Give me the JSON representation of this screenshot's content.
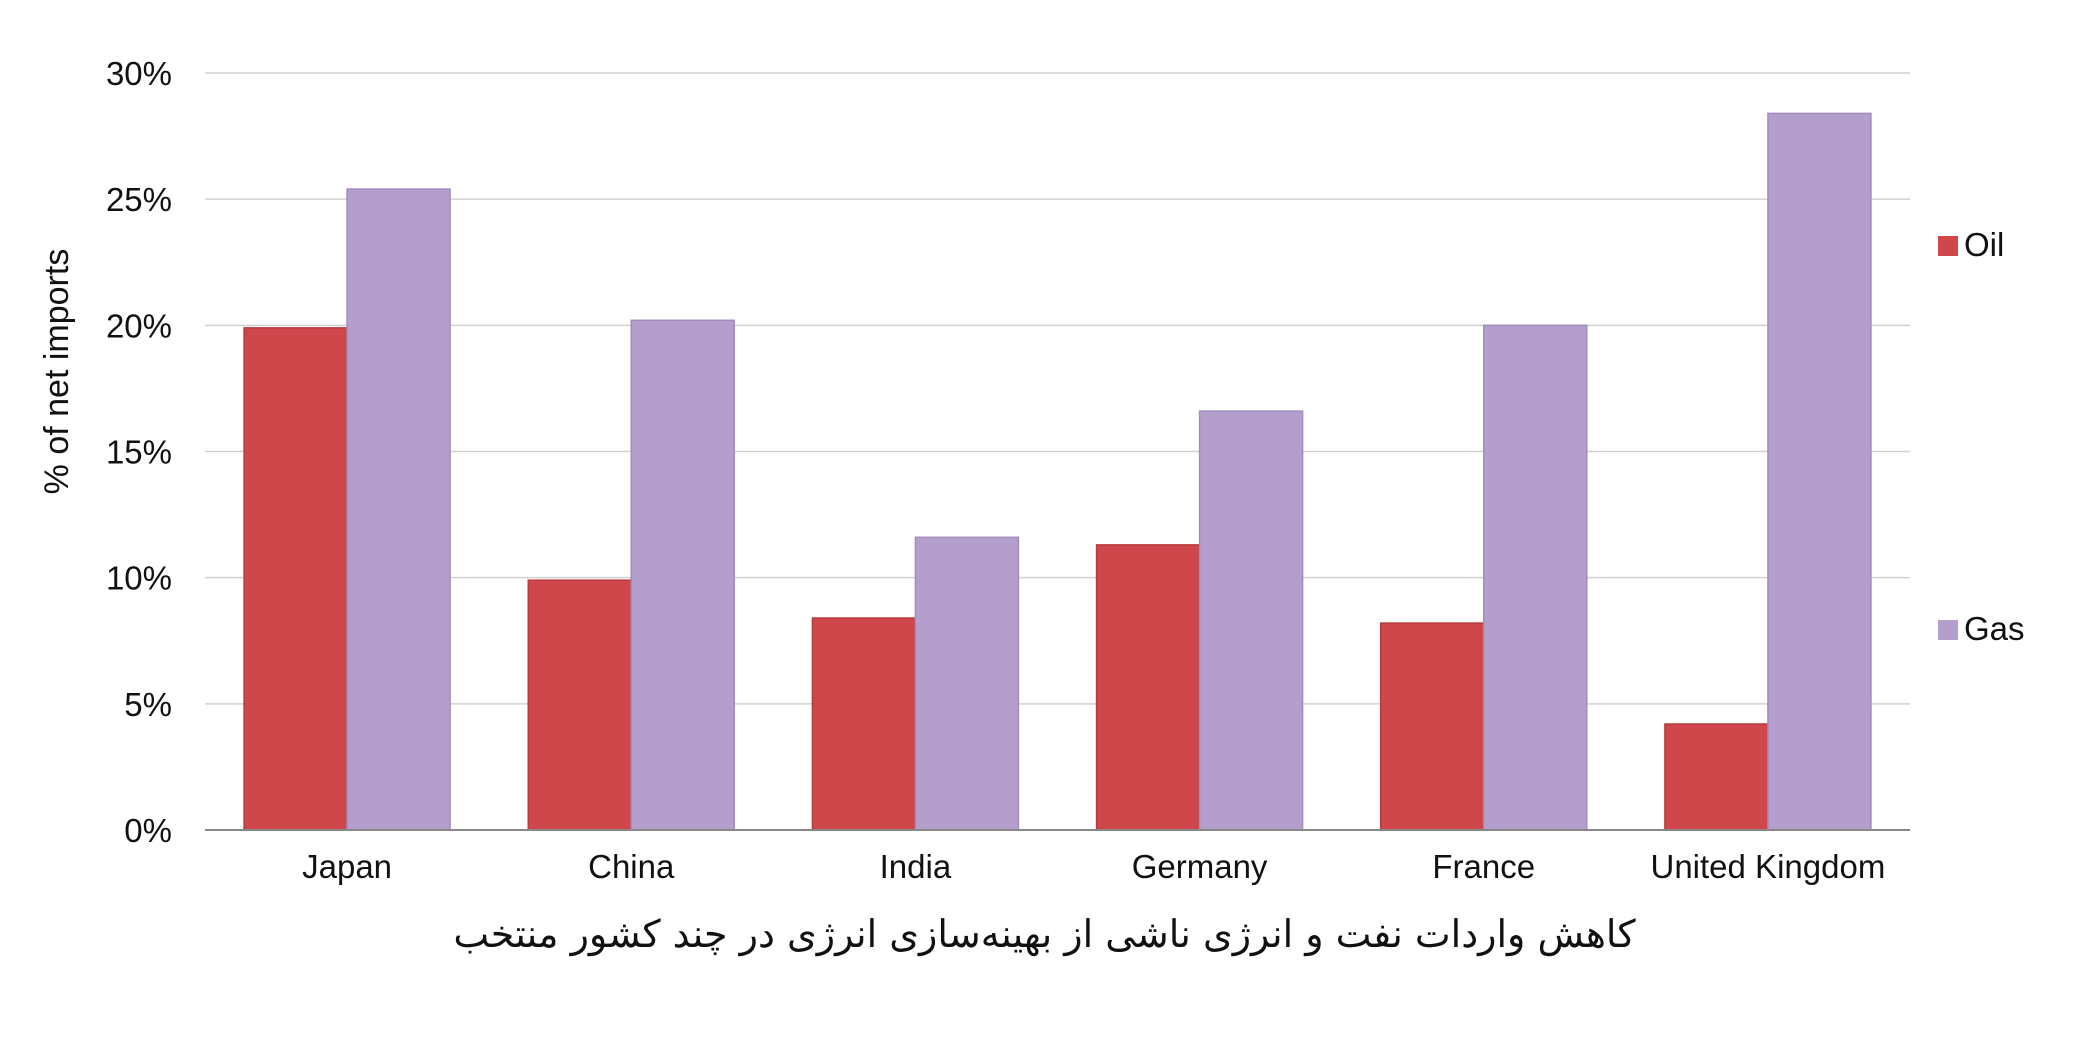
{
  "caption": "کاهش واردات نفت و انرژی ناشی از بهینه‌سازی انرژی در چند کشور منتخب",
  "colors": {
    "oil": "#d0474b",
    "gas": "#b49fcc",
    "grid": "#d0d0d0",
    "axis": "#888888",
    "text": "#111111"
  },
  "chart_data": {
    "type": "bar",
    "title": "",
    "xlabel": "",
    "ylabel": "% of net imports",
    "ylim": [
      0,
      30
    ],
    "yticks": [
      0,
      5,
      10,
      15,
      20,
      25,
      30
    ],
    "ytick_labels": [
      "0%",
      "5%",
      "10%",
      "15%",
      "20%",
      "25%",
      "30%"
    ],
    "grid": true,
    "legend_position": "right",
    "categories": [
      "Japan",
      "China",
      "India",
      "Germany",
      "France",
      "United Kingdom"
    ],
    "series": [
      {
        "name": "Oil",
        "values": [
          19.9,
          9.9,
          8.4,
          11.3,
          8.2,
          4.2
        ]
      },
      {
        "name": "Gas",
        "values": [
          25.4,
          20.2,
          11.6,
          16.6,
          20.0,
          28.4
        ]
      }
    ]
  }
}
